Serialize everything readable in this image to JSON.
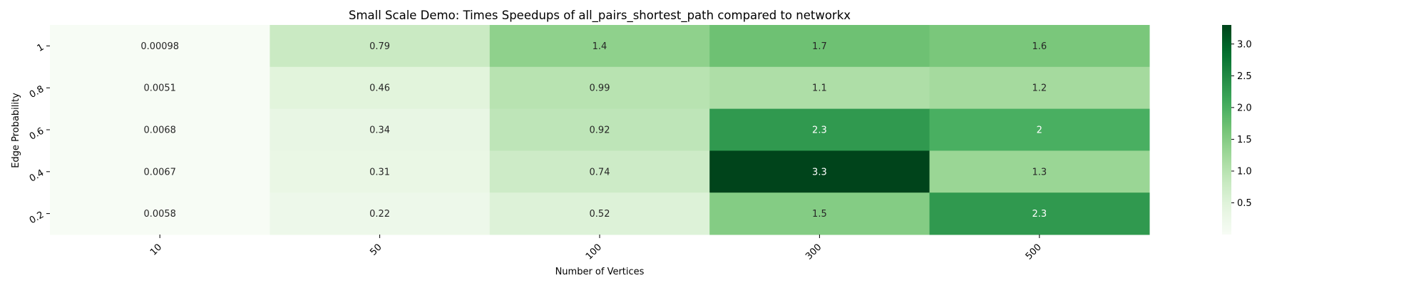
{
  "chart_data": {
    "type": "heatmap",
    "title": "Small Scale Demo: Times Speedups of all_pairs_shortest_path compared to networkx",
    "xlabel": "Number of Vertices",
    "ylabel": "Edge Probability",
    "x_categories": [
      "10",
      "50",
      "100",
      "300",
      "500"
    ],
    "y_categories": [
      "1",
      "0.8",
      "0.6",
      "0.4",
      "0.2"
    ],
    "values": [
      [
        0.00098,
        0.79,
        1.4,
        1.7,
        1.6
      ],
      [
        0.0051,
        0.46,
        0.99,
        1.1,
        1.2
      ],
      [
        0.0068,
        0.34,
        0.92,
        2.3,
        2
      ],
      [
        0.0067,
        0.31,
        0.74,
        3.3,
        1.3
      ],
      [
        0.0058,
        0.22,
        0.52,
        1.5,
        2.3
      ]
    ],
    "colormap": "Greens",
    "color_range": [
      0.00098,
      3.3
    ],
    "colorbar_ticks": [
      "0.5",
      "1.0",
      "1.5",
      "2.0",
      "2.5",
      "3.0"
    ],
    "annotations": true,
    "grid": false,
    "colorbar_position": "right"
  }
}
